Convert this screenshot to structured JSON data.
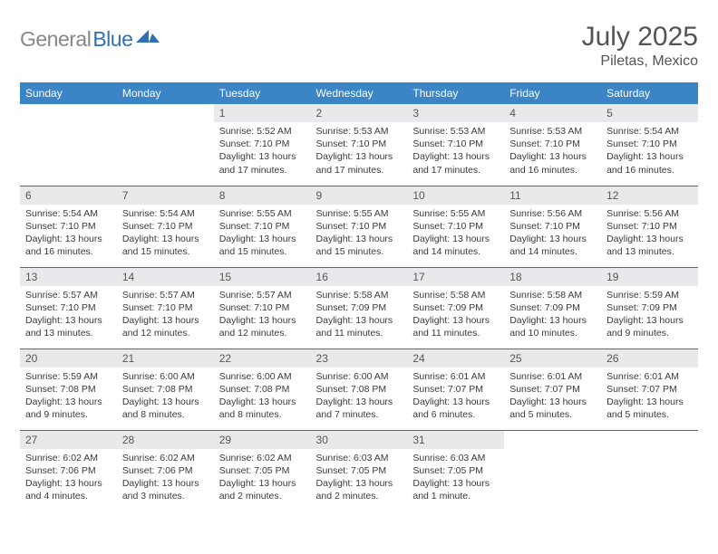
{
  "brand": {
    "part1": "General",
    "part2": "Blue"
  },
  "title": "July 2025",
  "location": "Piletas, Mexico",
  "colors": {
    "header_bg": "#3b85c6",
    "accent": "#2d72b6",
    "daynum_bg": "#e8e9ea",
    "text_muted": "#535455"
  },
  "day_headers": [
    "Sunday",
    "Monday",
    "Tuesday",
    "Wednesday",
    "Thursday",
    "Friday",
    "Saturday"
  ],
  "weeks": [
    [
      null,
      null,
      {
        "n": "1",
        "sr": "Sunrise: 5:52 AM",
        "ss": "Sunset: 7:10 PM",
        "dl": "Daylight: 13 hours and 17 minutes."
      },
      {
        "n": "2",
        "sr": "Sunrise: 5:53 AM",
        "ss": "Sunset: 7:10 PM",
        "dl": "Daylight: 13 hours and 17 minutes."
      },
      {
        "n": "3",
        "sr": "Sunrise: 5:53 AM",
        "ss": "Sunset: 7:10 PM",
        "dl": "Daylight: 13 hours and 17 minutes."
      },
      {
        "n": "4",
        "sr": "Sunrise: 5:53 AM",
        "ss": "Sunset: 7:10 PM",
        "dl": "Daylight: 13 hours and 16 minutes."
      },
      {
        "n": "5",
        "sr": "Sunrise: 5:54 AM",
        "ss": "Sunset: 7:10 PM",
        "dl": "Daylight: 13 hours and 16 minutes."
      }
    ],
    [
      {
        "n": "6",
        "sr": "Sunrise: 5:54 AM",
        "ss": "Sunset: 7:10 PM",
        "dl": "Daylight: 13 hours and 16 minutes."
      },
      {
        "n": "7",
        "sr": "Sunrise: 5:54 AM",
        "ss": "Sunset: 7:10 PM",
        "dl": "Daylight: 13 hours and 15 minutes."
      },
      {
        "n": "8",
        "sr": "Sunrise: 5:55 AM",
        "ss": "Sunset: 7:10 PM",
        "dl": "Daylight: 13 hours and 15 minutes."
      },
      {
        "n": "9",
        "sr": "Sunrise: 5:55 AM",
        "ss": "Sunset: 7:10 PM",
        "dl": "Daylight: 13 hours and 15 minutes."
      },
      {
        "n": "10",
        "sr": "Sunrise: 5:55 AM",
        "ss": "Sunset: 7:10 PM",
        "dl": "Daylight: 13 hours and 14 minutes."
      },
      {
        "n": "11",
        "sr": "Sunrise: 5:56 AM",
        "ss": "Sunset: 7:10 PM",
        "dl": "Daylight: 13 hours and 14 minutes."
      },
      {
        "n": "12",
        "sr": "Sunrise: 5:56 AM",
        "ss": "Sunset: 7:10 PM",
        "dl": "Daylight: 13 hours and 13 minutes."
      }
    ],
    [
      {
        "n": "13",
        "sr": "Sunrise: 5:57 AM",
        "ss": "Sunset: 7:10 PM",
        "dl": "Daylight: 13 hours and 13 minutes."
      },
      {
        "n": "14",
        "sr": "Sunrise: 5:57 AM",
        "ss": "Sunset: 7:10 PM",
        "dl": "Daylight: 13 hours and 12 minutes."
      },
      {
        "n": "15",
        "sr": "Sunrise: 5:57 AM",
        "ss": "Sunset: 7:10 PM",
        "dl": "Daylight: 13 hours and 12 minutes."
      },
      {
        "n": "16",
        "sr": "Sunrise: 5:58 AM",
        "ss": "Sunset: 7:09 PM",
        "dl": "Daylight: 13 hours and 11 minutes."
      },
      {
        "n": "17",
        "sr": "Sunrise: 5:58 AM",
        "ss": "Sunset: 7:09 PM",
        "dl": "Daylight: 13 hours and 11 minutes."
      },
      {
        "n": "18",
        "sr": "Sunrise: 5:58 AM",
        "ss": "Sunset: 7:09 PM",
        "dl": "Daylight: 13 hours and 10 minutes."
      },
      {
        "n": "19",
        "sr": "Sunrise: 5:59 AM",
        "ss": "Sunset: 7:09 PM",
        "dl": "Daylight: 13 hours and 9 minutes."
      }
    ],
    [
      {
        "n": "20",
        "sr": "Sunrise: 5:59 AM",
        "ss": "Sunset: 7:08 PM",
        "dl": "Daylight: 13 hours and 9 minutes."
      },
      {
        "n": "21",
        "sr": "Sunrise: 6:00 AM",
        "ss": "Sunset: 7:08 PM",
        "dl": "Daylight: 13 hours and 8 minutes."
      },
      {
        "n": "22",
        "sr": "Sunrise: 6:00 AM",
        "ss": "Sunset: 7:08 PM",
        "dl": "Daylight: 13 hours and 8 minutes."
      },
      {
        "n": "23",
        "sr": "Sunrise: 6:00 AM",
        "ss": "Sunset: 7:08 PM",
        "dl": "Daylight: 13 hours and 7 minutes."
      },
      {
        "n": "24",
        "sr": "Sunrise: 6:01 AM",
        "ss": "Sunset: 7:07 PM",
        "dl": "Daylight: 13 hours and 6 minutes."
      },
      {
        "n": "25",
        "sr": "Sunrise: 6:01 AM",
        "ss": "Sunset: 7:07 PM",
        "dl": "Daylight: 13 hours and 5 minutes."
      },
      {
        "n": "26",
        "sr": "Sunrise: 6:01 AM",
        "ss": "Sunset: 7:07 PM",
        "dl": "Daylight: 13 hours and 5 minutes."
      }
    ],
    [
      {
        "n": "27",
        "sr": "Sunrise: 6:02 AM",
        "ss": "Sunset: 7:06 PM",
        "dl": "Daylight: 13 hours and 4 minutes."
      },
      {
        "n": "28",
        "sr": "Sunrise: 6:02 AM",
        "ss": "Sunset: 7:06 PM",
        "dl": "Daylight: 13 hours and 3 minutes."
      },
      {
        "n": "29",
        "sr": "Sunrise: 6:02 AM",
        "ss": "Sunset: 7:05 PM",
        "dl": "Daylight: 13 hours and 2 minutes."
      },
      {
        "n": "30",
        "sr": "Sunrise: 6:03 AM",
        "ss": "Sunset: 7:05 PM",
        "dl": "Daylight: 13 hours and 2 minutes."
      },
      {
        "n": "31",
        "sr": "Sunrise: 6:03 AM",
        "ss": "Sunset: 7:05 PM",
        "dl": "Daylight: 13 hours and 1 minute."
      },
      null,
      null
    ]
  ]
}
